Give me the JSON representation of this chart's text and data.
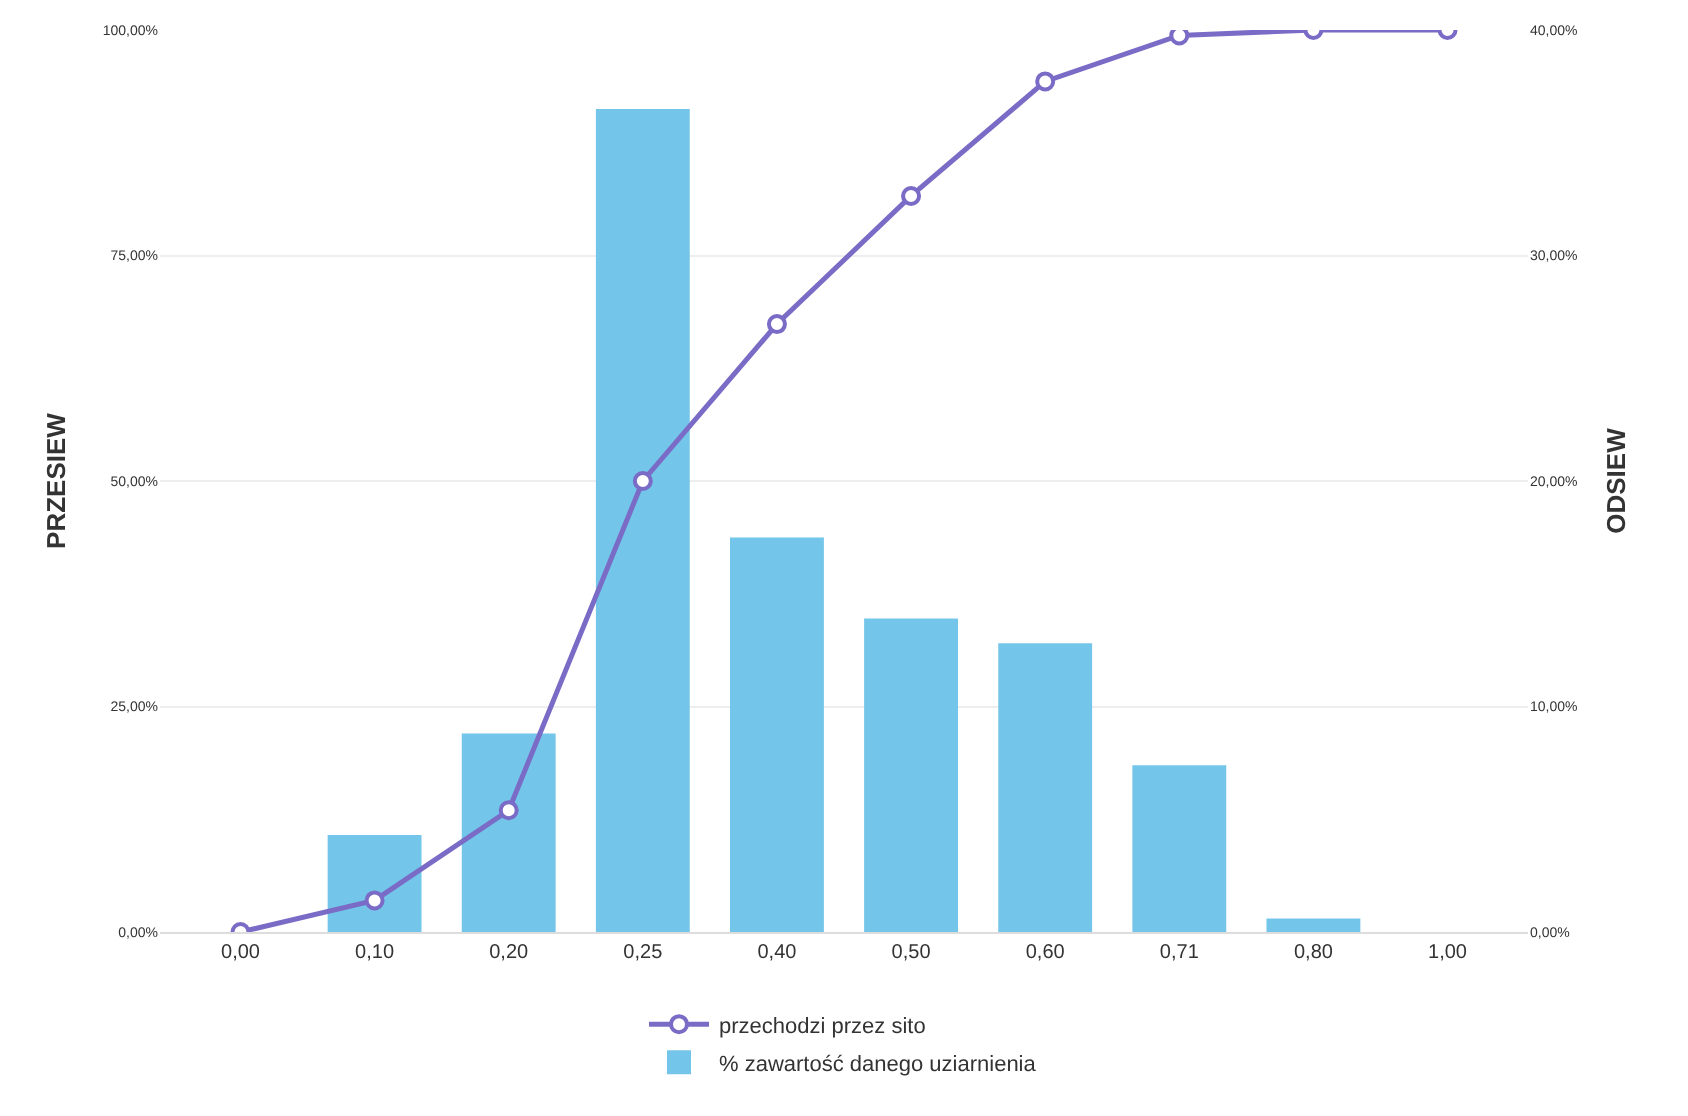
{
  "chart_data": {
    "type": "bar",
    "categories": [
      "0,00",
      "0,10",
      "0,20",
      "0,25",
      "0,40",
      "0,50",
      "0,60",
      "0,71",
      "0,80",
      "1,00"
    ],
    "series": [
      {
        "name": "przechodzi przez sito",
        "type": "line",
        "color": "#7a6cc6",
        "marker": "circle",
        "line_style": "solid",
        "values": [
          0,
          3.5,
          13.5,
          50,
          67.4,
          81.6,
          94.3,
          99.4,
          100,
          100
        ]
      },
      {
        "name": "% zawartość danego uziarnienia",
        "axis": "y2",
        "color": "#74c5ea",
        "values": [
          0,
          4.3,
          8.8,
          36.5,
          17.5,
          13.9,
          12.8,
          7.4,
          0.6,
          0
        ]
      }
    ],
    "ylabel": "PRZESIEW",
    "y2label": "ODSIEW",
    "ylim": [
      0,
      100
    ],
    "yticks": [
      {
        "value": 0,
        "label": "0,00%"
      },
      {
        "value": 25,
        "label": "25,00%"
      },
      {
        "value": 50,
        "label": "50,00%"
      },
      {
        "value": 75,
        "label": "75,00%"
      },
      {
        "value": 100,
        "label": "100,00%"
      }
    ],
    "y2lim": [
      0,
      40
    ],
    "y2ticks": [
      {
        "value": 0,
        "label": "0,00%"
      },
      {
        "value": 10,
        "label": "10,00%"
      },
      {
        "value": 20,
        "label": "20,00%"
      },
      {
        "value": 30,
        "label": "30,00%"
      },
      {
        "value": 40,
        "label": "40,00%"
      }
    ],
    "grid": "y",
    "legend": "bottom"
  }
}
